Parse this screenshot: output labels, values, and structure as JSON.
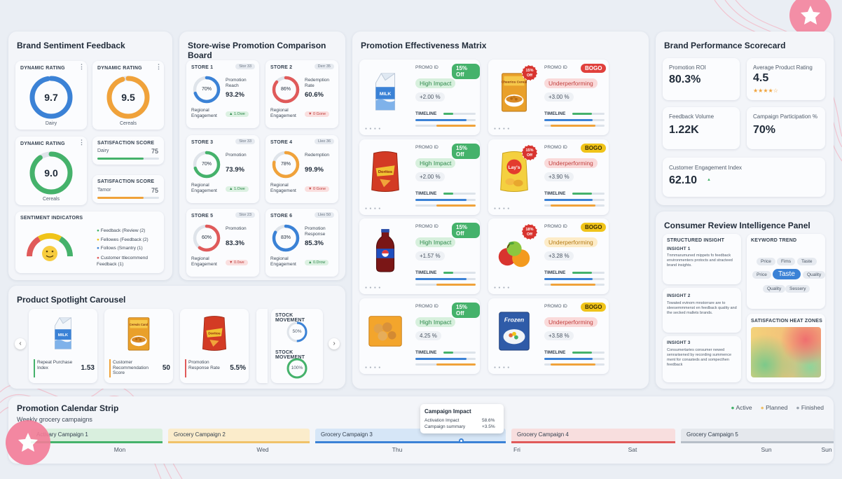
{
  "colors": {
    "blue": "#3b82d6",
    "orange": "#f0a23a",
    "green": "#45b26b",
    "red": "#e05a5a",
    "pink": "#f08aa0"
  },
  "sentiment": {
    "title": "Brand Sentiment Feedback",
    "rating1": {
      "label": "DYNAMIC RATING",
      "value": "9.7",
      "caption": "Dairy"
    },
    "rating2": {
      "label": "DYNAMIC RATING",
      "value": "9.5",
      "caption": "Cereals"
    },
    "rating3": {
      "label": "DYNAMIC RATING",
      "value": "9.0",
      "caption": "Cereals"
    },
    "sat1": {
      "label": "SATISFACTION SCORE",
      "name": "Dairy",
      "value": "75",
      "fill": 0.75
    },
    "sat2": {
      "label": "SATISFACTION SCORE",
      "name": "Tamor",
      "value": "75",
      "fill": 0.75
    },
    "indicators": {
      "label": "SENTIMENT INDICATORS",
      "items": [
        "Feedback (Review (2)",
        "Fellowes (Feedback (2)",
        "Follows (Smantry (1)",
        "Customer ttlecommend Feedback (1)"
      ]
    }
  },
  "stores": {
    "title": "Store-wise Promotion Comparison Board",
    "items": [
      {
        "name": "STORE 1",
        "tag": "Stor 33",
        "pct": "70%",
        "metric": "Promotion Reach",
        "value": "93.2%",
        "foot": "Regional Engagement",
        "delta": "▲ 1.Owe",
        "color": "#3b82d6",
        "fill": 0.7,
        "up": true
      },
      {
        "name": "STORE 2",
        "tag": "Derr 35",
        "pct": "86%",
        "metric": "Redemption Rate",
        "value": "60.6%",
        "foot": "Regional Engagement",
        "delta": "▼ 0 Gone",
        "color": "#e05a5a",
        "fill": 0.86,
        "up": false
      },
      {
        "name": "STORE 3",
        "tag": "Stor 33",
        "pct": "70%",
        "metric": "Promotion",
        "value": "73.9%",
        "foot": "Regional Engagement",
        "delta": "▲ 1.Owe",
        "color": "#45b26b",
        "fill": 0.7,
        "up": true
      },
      {
        "name": "STORE 4",
        "tag": "Lleo 36",
        "pct": "78%",
        "metric": "Redemption",
        "value": "99.9%",
        "foot": "Regional Engagement",
        "delta": "▼ 0 Gone",
        "color": "#f0a23a",
        "fill": 0.78,
        "up": false
      },
      {
        "name": "STORE 5",
        "tag": "Stor 23",
        "pct": "60%",
        "metric": "Promotion",
        "value": "83.3%",
        "foot": "Regional Engagement",
        "delta": "▼ 0.0we",
        "color": "#e05a5a",
        "fill": 0.6,
        "up": false
      },
      {
        "name": "STORE 6",
        "tag": "Lleo 50",
        "pct": "83%",
        "metric": "Promotion Response",
        "value": "85.3%",
        "foot": "Regional Engagement",
        "delta": "▲ 0.Drow",
        "color": "#3b82d6",
        "fill": 0.83,
        "up": true
      }
    ]
  },
  "matrix": {
    "title": "Promotion Effectiveness Matrix",
    "promo_label": "PROMO ID",
    "timeline_label": "TIMELINE",
    "items": [
      {
        "product": "milk",
        "badge": "15% Off",
        "badge_color": "#45b26b",
        "status": "High Impact",
        "status_bg": "#d7f0dd",
        "status_color": "#2f8a4c",
        "pct": "+2.00 %",
        "burst": ""
      },
      {
        "product": "cereal",
        "badge": "BOGO",
        "badge_color": "#e0403c",
        "status": "Underperforming",
        "status_bg": "#fadada",
        "status_color": "#c2403e",
        "pct": "+3.00 %",
        "burst": "15% Off"
      },
      {
        "product": "doritos",
        "badge": "15% Off",
        "badge_color": "#45b26b",
        "status": "High Impact",
        "status_bg": "#d7f0dd",
        "status_color": "#2f8a4c",
        "pct": "+2.00 %",
        "burst": ""
      },
      {
        "product": "lays",
        "badge": "BOGO",
        "badge_color": "#f0c419",
        "status": "Underperforming",
        "status_bg": "#fadada",
        "status_color": "#c2403e",
        "pct": "+3.90 %",
        "burst": "15% Off"
      },
      {
        "product": "pepsi",
        "badge": "15% Off",
        "badge_color": "#45b26b",
        "status": "High Impact",
        "status_bg": "#d7f0dd",
        "status_color": "#2f8a4c",
        "pct": "+1.57 %",
        "burst": ""
      },
      {
        "product": "fruit",
        "badge": "BOGO",
        "badge_color": "#f0c419",
        "status": "Underperforming",
        "status_bg": "#fdecc8",
        "status_color": "#b57a14",
        "pct": "+3.28 %",
        "burst": "18% Off"
      },
      {
        "product": "nuggets",
        "badge": "15% Off",
        "badge_color": "#45b26b",
        "status": "High Impact",
        "status_bg": "#d7f0dd",
        "status_color": "#2f8a4c",
        "pct": "4.25 %",
        "burst": ""
      },
      {
        "product": "frozen",
        "badge": "BOGO",
        "badge_color": "#f0c419",
        "status": "Underperforming",
        "status_bg": "#fadada",
        "status_color": "#c2403e",
        "pct": "+3.58 %",
        "burst": ""
      }
    ],
    "frozen_brand": "Frozen",
    "cereal_brand": "Cheerios Cereal",
    "doritos_brand": "Doritos",
    "lays_brand": "Lay's"
  },
  "scorecard": {
    "title": "Brand Performance Scorecard",
    "kpis": [
      {
        "label": "Promotion ROI",
        "value": "80.3%"
      },
      {
        "label": "Average Product Rating",
        "value": "4.5",
        "stars": "★★★★☆"
      },
      {
        "label": "Feedback Volume",
        "value": "1.22K"
      },
      {
        "label": "Campaign Participation %",
        "value": "70%"
      },
      {
        "label": "Customer Engagement Index",
        "value": "62.10",
        "arrow": "▲"
      }
    ]
  },
  "reviews": {
    "title": "Consumer Review Intelligence Panel",
    "structured": "STRUCTURED INSIGHT",
    "insights": [
      {
        "label": "INSIGHT 1",
        "text": "Tnmmarumuned mippets fo feedback environmenters protocts and stracteed brand insights."
      },
      {
        "label": "INSIGHT 2",
        "text": "Towated evinom mnstorrare are to sleesemmmenst en feedback quality and the secked mallets brands."
      },
      {
        "label": "INSIGHT 3",
        "text": "Consumertaries consumer newed senrarisened by recording summence ment for conasteds and sompecthen feedback"
      }
    ],
    "keyword_title": "KEYWORD TREND",
    "keywords": [
      "Price",
      "Fims",
      "Taste",
      "Price",
      "Taste",
      "Quality",
      "Quality",
      "Sessery"
    ],
    "heat_title": "SATISFACTION HEAT ZONES"
  },
  "carousel": {
    "title": "Product Spotlight Carousel",
    "items": [
      {
        "product": "milk",
        "metric": "Repeat Purchase Index",
        "value": "1.53",
        "color": "#45b26b"
      },
      {
        "product": "cereal",
        "metric": "Customer Recommendation Score",
        "value": "50",
        "color": "#f0a23a"
      },
      {
        "product": "doritos",
        "metric": "Promotion Response Rate",
        "value": "5.5%",
        "color": "#e05a5a"
      }
    ],
    "stock1": {
      "label": "STOCK MOVEMENT",
      "pct": "50%",
      "fill": 0.5
    },
    "stock2": {
      "label": "STOCK MOVEMENT",
      "pct": "100%",
      "fill": 1.0
    },
    "cereal_brand": "Cereals Cand",
    "doritos_brand": "Doritos"
  },
  "calendar": {
    "title": "Promotion Calendar Strip",
    "subtitle": "Weekly grocery campaigns",
    "legend": [
      {
        "label": "Active",
        "color": "#45b26b"
      },
      {
        "label": "Planned",
        "color": "#f0c26a"
      },
      {
        "label": "Finished",
        "color": "#9aa3ae"
      }
    ],
    "campaigns": [
      {
        "label": "Activary Campaign 1",
        "bg": "#d9efde",
        "line": "#45b26b"
      },
      {
        "label": "Grocery Campaign 2",
        "bg": "#fbeccb",
        "line": "#f0c26a"
      },
      {
        "label": "Grocery Campaign 3",
        "bg": "#d6e6f7",
        "line": "#3b82d6"
      },
      {
        "label": "Grocery Campaign 4",
        "bg": "#f8dede",
        "line": "#e05a5a"
      },
      {
        "label": "Grocery Campaign 5",
        "bg": "#e5e8ed",
        "line": "#b7bec8"
      }
    ],
    "days": [
      "Mon",
      "Wed",
      "Thu",
      "Fri",
      "Sat",
      "Sun",
      "Sun"
    ],
    "tooltip": {
      "title": "Campaign Impact",
      "row1_label": "Activation Impact",
      "row1_value": "58.6%",
      "row2_label": "Campaign summary",
      "row2_value": "+3.5%"
    }
  }
}
